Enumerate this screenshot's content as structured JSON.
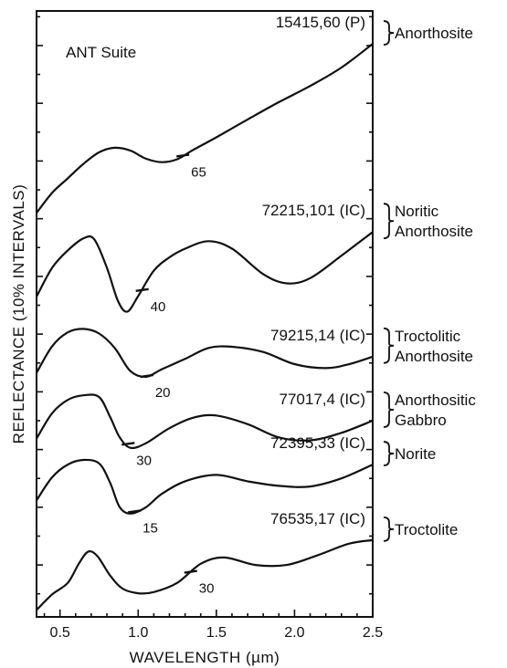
{
  "chart_data": {
    "type": "line",
    "title": "ANT Suite",
    "xlabel": "WAVELENGTH (µm)",
    "ylabel": "REFLECTANCE (10% INTERVALS)",
    "xlim": [
      0.35,
      2.5
    ],
    "x_ticks": [
      "0.5",
      "1.0",
      "1.5",
      "2.0",
      "2.5"
    ],
    "grid": false,
    "series": [
      {
        "name": "Anorthosite",
        "sample": "15415,60 (P)",
        "band_marker": {
          "label": "65",
          "x": 1.28
        },
        "x": [
          0.35,
          0.45,
          0.55,
          0.65,
          0.75,
          0.85,
          0.95,
          1.05,
          1.15,
          1.25,
          1.35,
          1.5,
          1.7,
          1.9,
          2.1,
          2.3,
          2.5
        ],
        "y": [
          61.0,
          64.5,
          67.0,
          69.5,
          71.5,
          72.3,
          71.8,
          70.4,
          69.8,
          70.3,
          71.9,
          74.1,
          77.2,
          80.2,
          83.0,
          86.2,
          90.3
        ]
      },
      {
        "name": "Noritic Anorthosite",
        "sample": "72215,101 (IC)",
        "band_marker": {
          "label": "40",
          "x": 1.02
        },
        "x": [
          0.35,
          0.45,
          0.55,
          0.65,
          0.72,
          0.8,
          0.87,
          0.93,
          1.0,
          1.1,
          1.2,
          1.3,
          1.45,
          1.6,
          1.8,
          1.95,
          2.1,
          2.3,
          2.5
        ],
        "y": [
          46.5,
          51.5,
          54.5,
          56.6,
          56.4,
          51.5,
          45.8,
          43.9,
          46.6,
          51.0,
          53.3,
          54.8,
          56.1,
          54.8,
          50.4,
          48.8,
          49.7,
          53.6,
          57.7
        ]
      },
      {
        "name": "Troctolitic Anorthosite",
        "sample": "79215,14 (IC)",
        "band_marker": {
          "label": "20",
          "x": 1.05
        },
        "x": [
          0.35,
          0.45,
          0.55,
          0.65,
          0.75,
          0.85,
          0.95,
          1.05,
          1.15,
          1.3,
          1.45,
          1.6,
          1.8,
          2.0,
          2.2,
          2.35,
          2.5
        ],
        "y": [
          33.3,
          37.9,
          40.3,
          40.9,
          40.1,
          37.6,
          33.6,
          32.6,
          33.9,
          35.7,
          37.6,
          37.8,
          36.9,
          34.8,
          34.1,
          34.8,
          36.1
        ]
      },
      {
        "name": "Anorthositic Gabbro",
        "sample": "77017,4 (IC)",
        "band_marker": {
          "label": "30",
          "x": 0.93
        },
        "x": [
          0.35,
          0.45,
          0.55,
          0.65,
          0.75,
          0.82,
          0.88,
          0.95,
          1.05,
          1.2,
          1.35,
          1.5,
          1.7,
          1.9,
          2.1,
          2.3,
          2.5
        ],
        "y": [
          21.9,
          26.3,
          28.6,
          29.4,
          29.1,
          25.7,
          22.2,
          20.3,
          21.1,
          23.7,
          25.5,
          25.9,
          24.4,
          22.1,
          21.6,
          22.9,
          25.0
        ]
      },
      {
        "name": "Norite",
        "sample": "72395,33 (IC)",
        "band_marker": {
          "label": "15",
          "x": 0.97
        },
        "x": [
          0.35,
          0.45,
          0.55,
          0.65,
          0.75,
          0.82,
          0.88,
          0.95,
          1.05,
          1.15,
          1.3,
          1.5,
          1.7,
          1.9,
          2.1,
          2.3,
          2.5
        ],
        "y": [
          11.2,
          15.2,
          17.4,
          18.2,
          17.6,
          14.3,
          10.1,
          8.9,
          10.0,
          12.3,
          14.5,
          15.6,
          14.5,
          13.7,
          13.6,
          15.0,
          17.4
        ]
      },
      {
        "name": "Troctolite",
        "sample": "76535,17 (IC)",
        "band_marker": {
          "label": "30",
          "x": 1.33
        },
        "x": [
          0.35,
          0.45,
          0.55,
          0.62,
          0.68,
          0.74,
          0.82,
          0.9,
          1.0,
          1.1,
          1.25,
          1.4,
          1.55,
          1.75,
          1.95,
          2.15,
          2.35,
          2.5
        ],
        "y": [
          -7.8,
          -5.1,
          -3.1,
          0.2,
          2.3,
          1.5,
          -1.8,
          -4.1,
          -4.9,
          -4.7,
          -3.1,
          0.2,
          1.3,
          0.0,
          0.0,
          1.7,
          3.7,
          4.3
        ]
      }
    ]
  }
}
